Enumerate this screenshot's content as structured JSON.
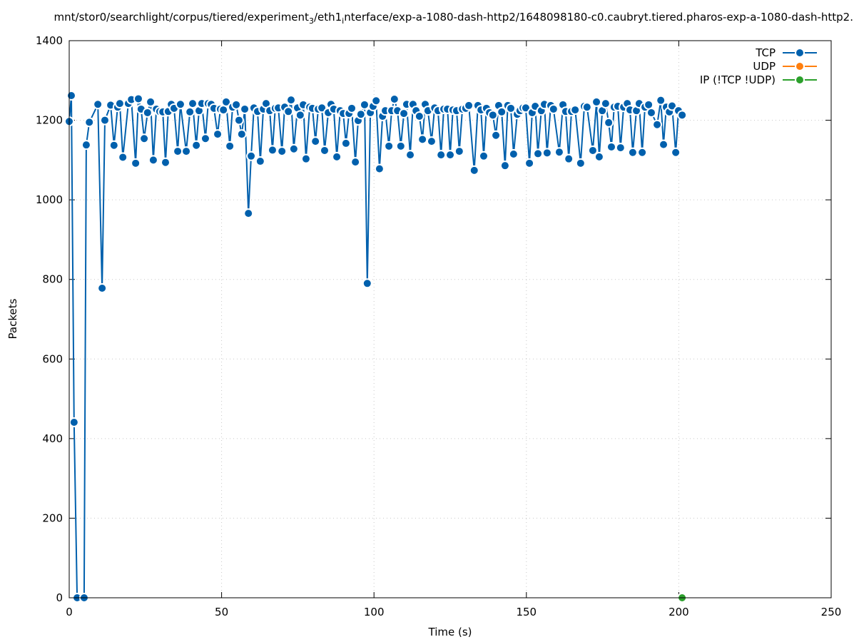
{
  "chart_data": {
    "type": "line",
    "title": [
      "mnt/stor0/searchlight/corpus/tiered/experiment",
      "3",
      "/eth1",
      "i",
      "nterface/exp-a-1080-dash-http2/1648098180-c0.caubryt.tiered.pharos-exp-a-1080-dash-http2."
    ],
    "x_label": "Time (s)",
    "y_label": "Packets",
    "xlim": [
      0,
      250
    ],
    "xticks": [
      0,
      50,
      100,
      150,
      200,
      250
    ],
    "ylim": [
      0,
      1400
    ],
    "yticks": [
      0,
      200,
      400,
      600,
      800,
      1000,
      1200,
      1400
    ],
    "grid": true,
    "legend": "top-right",
    "series": [
      {
        "name": "TCP",
        "color": "#0060ad",
        "x": [
          0,
          0.7,
          1.6,
          2.6,
          4.9,
          5.6,
          6.6,
          9.4,
          10.8,
          11.7,
          13.6,
          14.7,
          15.9,
          16.6,
          17.6,
          19.4,
          20.4,
          21.8,
          22.7,
          23.6,
          24.6,
          25.7,
          26.7,
          27.6,
          28.6,
          29.7,
          30.7,
          31.6,
          32.5,
          33.5,
          34.4,
          35.6,
          36.5,
          38.4,
          39.6,
          40.5,
          41.7,
          42.6,
          43.5,
          44.7,
          45.6,
          46.6,
          47.5,
          48.7,
          49.6,
          50.6,
          51.5,
          52.7,
          53.6,
          54.8,
          55.7,
          56.6,
          57.6,
          58.8,
          59.7,
          60.6,
          61.8,
          62.7,
          63.7,
          64.6,
          65.8,
          66.7,
          67.6,
          68.6,
          69.8,
          70.7,
          71.9,
          72.8,
          73.7,
          74.9,
          75.8,
          76.8,
          77.7,
          78.9,
          79.8,
          80.8,
          81.7,
          82.9,
          83.8,
          85.0,
          85.9,
          86.8,
          87.8,
          88.9,
          89.9,
          90.8,
          91.8,
          92.7,
          93.9,
          94.8,
          95.7,
          96.9,
          97.8,
          98.8,
          99.7,
          100.7,
          101.8,
          102.8,
          103.7,
          104.9,
          105.8,
          106.7,
          107.7,
          108.8,
          109.8,
          110.7,
          111.9,
          112.8,
          113.8,
          114.9,
          115.9,
          116.8,
          117.7,
          118.9,
          119.9,
          121.0,
          122.0,
          122.9,
          124.1,
          125.0,
          125.9,
          127.1,
          128.0,
          129.0,
          130.1,
          131.1,
          132.9,
          134.1,
          135.1,
          136.0,
          136.9,
          137.9,
          139.0,
          140.0,
          140.9,
          141.9,
          143.0,
          143.9,
          144.9,
          145.8,
          147.0,
          147.9,
          148.9,
          149.8,
          151.0,
          151.9,
          152.9,
          153.8,
          154.9,
          155.9,
          156.8,
          158.0,
          158.9,
          160.8,
          162.0,
          162.9,
          163.9,
          164.8,
          166.0,
          167.8,
          169.0,
          169.9,
          171.8,
          173.0,
          173.9,
          174.9,
          176.0,
          177.0,
          177.9,
          178.8,
          180.0,
          180.9,
          181.9,
          183.1,
          184.0,
          184.9,
          186.1,
          187.0,
          188.0,
          188.9,
          190.1,
          191.0,
          192.9,
          194.1,
          195.0,
          195.9,
          196.9,
          197.8,
          199.0,
          199.9,
          201.1
        ],
        "values": [
          1197,
          1262,
          441,
          0,
          0,
          1138,
          1195,
          1240,
          778,
          1200,
          1238,
          1137,
          1233,
          1242,
          1107,
          1242,
          1252,
          1092,
          1254,
          1228,
          1154,
          1219,
          1246,
          1100,
          1228,
          1222,
          1221,
          1094,
          1222,
          1240,
          1230,
          1122,
          1240,
          1122,
          1221,
          1242,
          1137,
          1224,
          1242,
          1154,
          1242,
          1240,
          1230,
          1165,
          1228,
          1226,
          1246,
          1135,
          1233,
          1239,
          1200,
          1165,
          1228,
          966,
          1110,
          1231,
          1222,
          1097,
          1228,
          1242,
          1224,
          1125,
          1230,
          1231,
          1122,
          1233,
          1222,
          1251,
          1128,
          1231,
          1213,
          1239,
          1103,
          1233,
          1230,
          1147,
          1228,
          1231,
          1124,
          1219,
          1240,
          1228,
          1108,
          1224,
          1217,
          1142,
          1217,
          1230,
          1095,
          1199,
          1215,
          1239,
          790,
          1219,
          1235,
          1249,
          1078,
          1210,
          1224,
          1135,
          1224,
          1253,
          1224,
          1135,
          1217,
          1240,
          1113,
          1240,
          1224,
          1210,
          1152,
          1240,
          1224,
          1147,
          1231,
          1224,
          1113,
          1228,
          1228,
          1113,
          1226,
          1224,
          1122,
          1228,
          1230,
          1237,
          1074,
          1237,
          1226,
          1110,
          1230,
          1219,
          1213,
          1162,
          1237,
          1221,
          1086,
          1237,
          1230,
          1115,
          1215,
          1224,
          1231,
          1231,
          1092,
          1219,
          1235,
          1116,
          1224,
          1240,
          1118,
          1237,
          1228,
          1120,
          1239,
          1222,
          1103,
          1222,
          1226,
          1092,
          1235,
          1233,
          1124,
          1246,
          1108,
          1224,
          1242,
          1194,
          1133,
          1233,
          1235,
          1131,
          1233,
          1242,
          1226,
          1119,
          1224,
          1242,
          1119,
          1233,
          1239,
          1219,
          1189,
          1250,
          1139,
          1233,
          1221,
          1236,
          1119,
          1224,
          1213
        ]
      },
      {
        "name": "UDP",
        "color": "#ff7f0e",
        "x": [],
        "values": []
      },
      {
        "name": "IP (!TCP  !UDP)",
        "color": "#2ca02c",
        "x": [
          201.1
        ],
        "values": [
          0
        ]
      }
    ]
  }
}
